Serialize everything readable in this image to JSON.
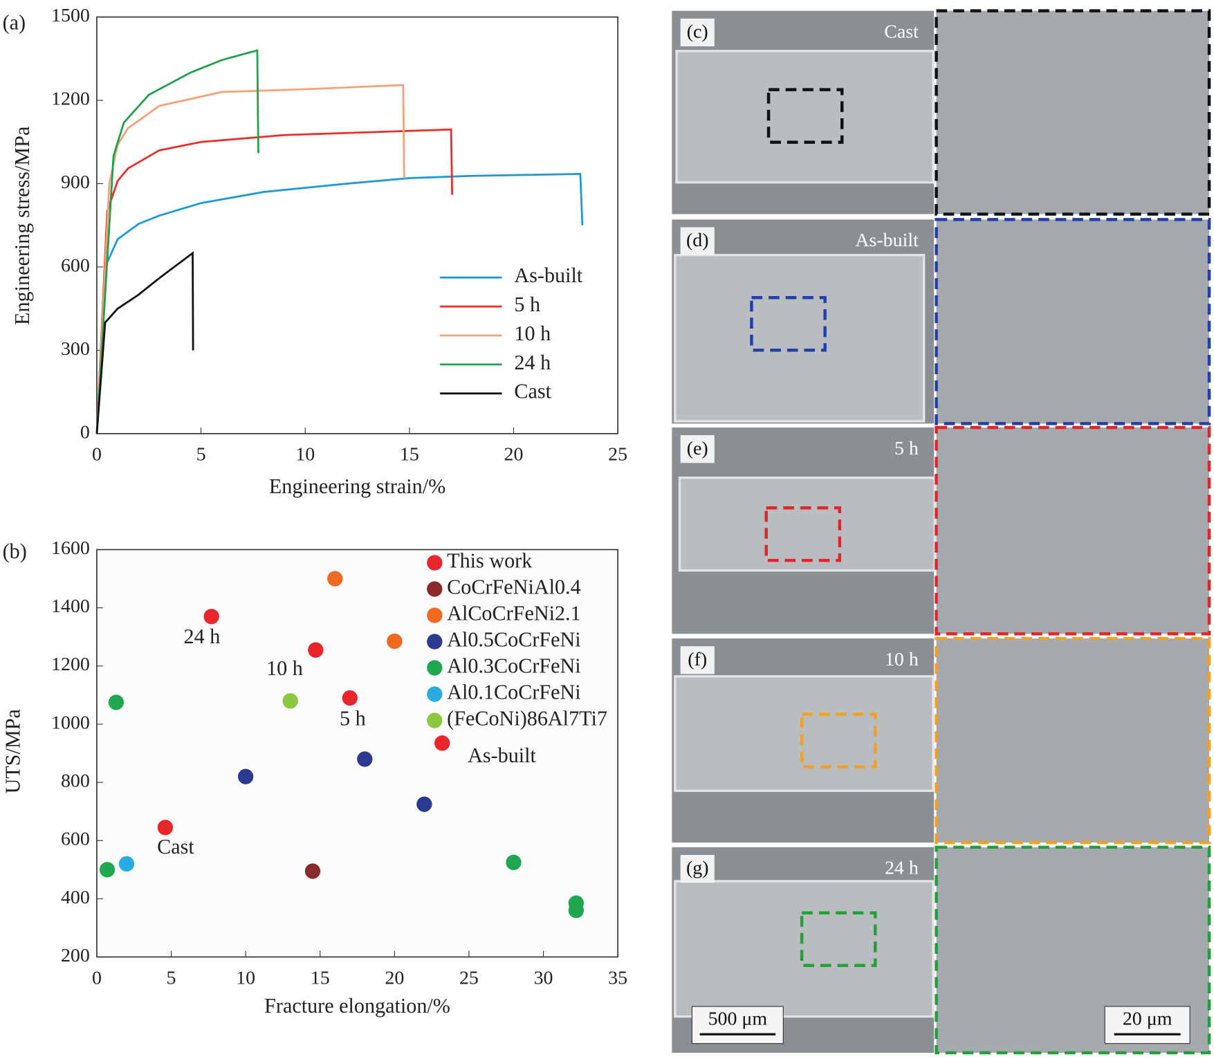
{
  "chart_data": [
    {
      "type": "line",
      "panel_label": "(a)",
      "xlabel": "Engineering strain/%",
      "ylabel": "Engineering stress/MPa",
      "xlim": [
        0,
        25
      ],
      "ylim": [
        0,
        1500
      ],
      "xticks": [
        0,
        5,
        10,
        15,
        20,
        25
      ],
      "yticks": [
        0,
        300,
        600,
        900,
        1200,
        1500
      ],
      "series": [
        {
          "name": "As-built",
          "color": "#1e9ad6",
          "x": [
            0,
            0.4,
            1,
            2,
            3,
            5,
            8,
            12,
            15,
            18,
            23.2,
            23.3
          ],
          "values": [
            0,
            600,
            700,
            755,
            785,
            830,
            870,
            900,
            920,
            928,
            935,
            750
          ]
        },
        {
          "name": "5 h",
          "color": "#e8302a",
          "x": [
            0,
            0.5,
            1,
            1.5,
            3,
            5,
            9,
            13,
            17,
            17.05
          ],
          "values": [
            0,
            800,
            910,
            955,
            1020,
            1050,
            1075,
            1085,
            1095,
            860
          ]
        },
        {
          "name": "10 h",
          "color": "#f4a07a",
          "x": [
            0,
            0.6,
            1,
            1.5,
            3,
            6,
            10,
            14.7,
            14.75
          ],
          "values": [
            0,
            900,
            1040,
            1100,
            1180,
            1230,
            1240,
            1255,
            920
          ]
        },
        {
          "name": "24 h",
          "color": "#22a04b",
          "x": [
            0,
            0.8,
            1.3,
            2.5,
            4.5,
            6,
            7.7,
            7.75
          ],
          "values": [
            0,
            1000,
            1120,
            1220,
            1300,
            1345,
            1380,
            1010
          ]
        },
        {
          "name": "Cast",
          "color": "#111111",
          "x": [
            0,
            0.4,
            1,
            2,
            3,
            4.6,
            4.62
          ],
          "values": [
            0,
            400,
            450,
            500,
            560,
            650,
            300
          ]
        }
      ]
    },
    {
      "type": "scatter",
      "panel_label": "(b)",
      "xlabel": "Fracture elongation/%",
      "ylabel": "UTS/MPa",
      "xlim": [
        0,
        35
      ],
      "ylim": [
        200,
        1600
      ],
      "xticks": [
        0,
        5,
        10,
        15,
        20,
        25,
        30,
        35
      ],
      "yticks": [
        200,
        400,
        600,
        800,
        1000,
        1200,
        1400,
        1600
      ],
      "series": [
        {
          "name": "This work",
          "color": "#e8262b",
          "x": [
            4.6,
            7.7,
            14.7,
            17,
            23.2
          ],
          "values": [
            645,
            1370,
            1255,
            1090,
            935
          ]
        },
        {
          "name": "CoCrFeNiAl0.4",
          "color": "#8b2a2a",
          "x": [
            14.5
          ],
          "values": [
            495
          ]
        },
        {
          "name": "AlCoCrFeNi2.1",
          "color": "#ef6a21",
          "x": [
            16,
            20
          ],
          "values": [
            1500,
            1285
          ]
        },
        {
          "name": "Al0.5CoCrFeNi",
          "color": "#2b3990",
          "x": [
            10,
            18,
            22
          ],
          "values": [
            820,
            880,
            725
          ]
        },
        {
          "name": "Al0.3CoCrFeNi",
          "color": "#1fa84f",
          "x": [
            1.3,
            0.7,
            28,
            32.2,
            32.2
          ],
          "values": [
            1075,
            500,
            525,
            385,
            360
          ]
        },
        {
          "name": "Al0.1CoCrFeNi",
          "color": "#29abe2",
          "x": [
            2
          ],
          "values": [
            520
          ]
        },
        {
          "name": "(FeCoNi)86Al7Ti7",
          "color": "#8dc63f",
          "x": [
            13
          ],
          "values": [
            1080
          ]
        }
      ],
      "annotations": [
        "24 h",
        "10 h",
        "5 h",
        "As-built",
        "Cast"
      ]
    }
  ],
  "panels": [
    {
      "label": "(c)",
      "caption": "Cast"
    },
    {
      "label": "(d)",
      "caption": "As-built"
    },
    {
      "label": "(e)",
      "caption": "5 h"
    },
    {
      "label": "(f)",
      "caption": "10 h"
    },
    {
      "label": "(g)",
      "caption": "24 h"
    }
  ],
  "scale_bars": [
    "500 μm",
    "20 μm"
  ]
}
